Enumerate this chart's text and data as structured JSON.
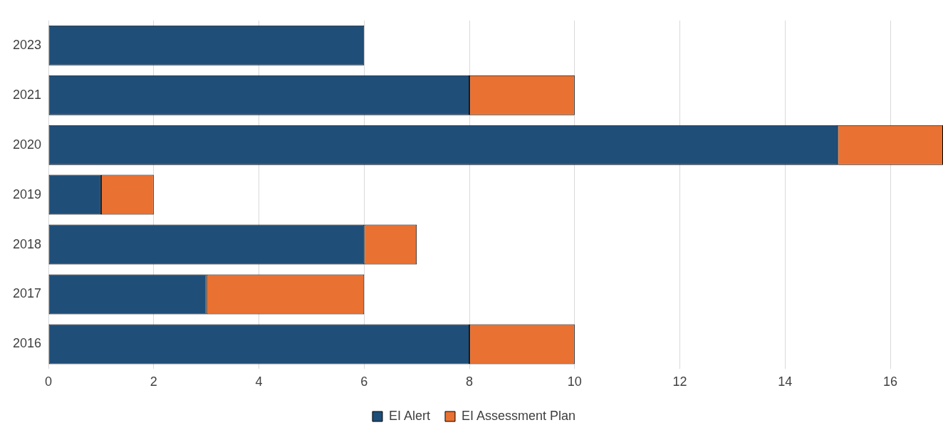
{
  "chart_data": {
    "type": "bar",
    "orientation": "horizontal",
    "stacked": true,
    "categories": [
      "2023",
      "2021",
      "2020",
      "2019",
      "2018",
      "2017",
      "2016"
    ],
    "series": [
      {
        "name": "EI Alert",
        "color": "#1f4e79",
        "values": [
          6,
          8,
          15,
          1,
          6,
          3,
          8
        ]
      },
      {
        "name": "EI Assessment Plan",
        "color": "#e97132",
        "values": [
          null,
          2,
          2,
          1,
          1,
          3,
          2
        ]
      }
    ],
    "xlim": [
      0,
      17
    ],
    "xticks": [
      0,
      2,
      4,
      6,
      8,
      10,
      12,
      14,
      16
    ],
    "grid": "x",
    "legend": "bottom"
  }
}
